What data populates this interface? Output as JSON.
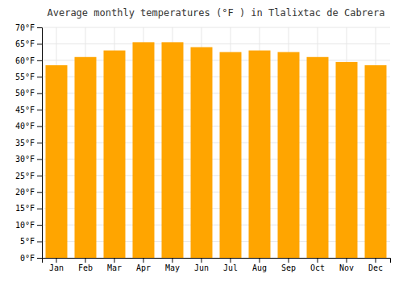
{
  "chart_data": {
    "type": "bar",
    "title": "Average monthly temperatures (°F ) in Tlalixtac de Cabrera",
    "categories": [
      "Jan",
      "Feb",
      "Mar",
      "Apr",
      "May",
      "Jun",
      "Jul",
      "Aug",
      "Sep",
      "Oct",
      "Nov",
      "Dec"
    ],
    "values": [
      58.5,
      61.0,
      63.0,
      65.5,
      65.5,
      64.0,
      62.5,
      63.0,
      62.5,
      61.0,
      59.5,
      58.5
    ],
    "color": "#FFA500",
    "ylim": [
      0,
      70
    ],
    "yticks": [
      {
        "value": 0,
        "label": "0°F"
      },
      {
        "value": 5,
        "label": "5°F"
      },
      {
        "value": 10,
        "label": "10°F"
      },
      {
        "value": 15,
        "label": "15°F"
      },
      {
        "value": 20,
        "label": "20°F"
      },
      {
        "value": 25,
        "label": "25°F"
      },
      {
        "value": 30,
        "label": "30°F"
      },
      {
        "value": 35,
        "label": "35°F"
      },
      {
        "value": 40,
        "label": "40°F"
      },
      {
        "value": 45,
        "label": "45°F"
      },
      {
        "value": 50,
        "label": "50°F"
      },
      {
        "value": 55,
        "label": "55°F"
      },
      {
        "value": 60,
        "label": "60°F"
      },
      {
        "value": 65,
        "label": "65°F"
      },
      {
        "value": 70,
        "label": "70°F"
      }
    ],
    "grid": true
  }
}
